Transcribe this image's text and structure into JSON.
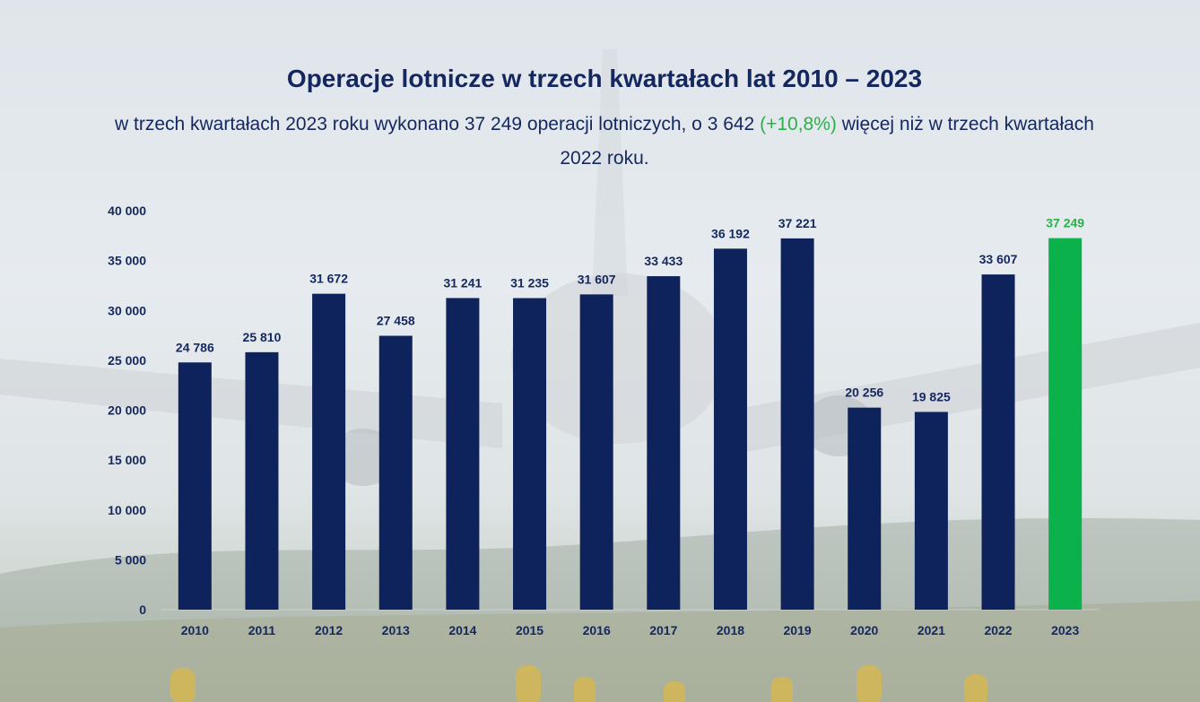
{
  "header": {
    "title": "Operacje lotnicze w trzech kwartałach lat 2010 – 2023",
    "subtitle_part1": "w trzech kwartałach 2023 roku wykonano 37 249 operacji lotniczych, o 3 642 ",
    "subtitle_highlight": "(+10,8%)",
    "subtitle_part2": " więcej niż w trzech kwartałach 2022 roku."
  },
  "colors": {
    "bar": "#0e225b",
    "highlight_bar": "#0bb14b",
    "highlight_label": "#2bb04a",
    "text": "#14275f"
  },
  "chart_data": {
    "type": "bar",
    "title": "Operacje lotnicze w trzech kwartałach lat 2010 – 2023",
    "xlabel": "",
    "ylabel": "",
    "categories": [
      "2010",
      "2011",
      "2012",
      "2013",
      "2014",
      "2015",
      "2016",
      "2017",
      "2018",
      "2019",
      "2020",
      "2021",
      "2022",
      "2023"
    ],
    "values": [
      24786,
      25810,
      31672,
      27458,
      31241,
      31235,
      31607,
      33433,
      36192,
      37221,
      20256,
      19825,
      33607,
      37249
    ],
    "value_labels": [
      "24 786",
      "25 810",
      "31 672",
      "27 458",
      "31 241",
      "31 235",
      "31 607",
      "33 433",
      "36 192",
      "37 221",
      "20 256",
      "19 825",
      "33 607",
      "37 249"
    ],
    "highlight_index": 13,
    "ylim": [
      0,
      40000
    ],
    "yticks": [
      0,
      5000,
      10000,
      15000,
      20000,
      25000,
      30000,
      35000,
      40000
    ],
    "ytick_labels": [
      "0",
      "5 000",
      "10 000",
      "15 000",
      "20 000",
      "25 000",
      "30 000",
      "35 000",
      "40 000"
    ],
    "grid": false,
    "legend": "none"
  }
}
